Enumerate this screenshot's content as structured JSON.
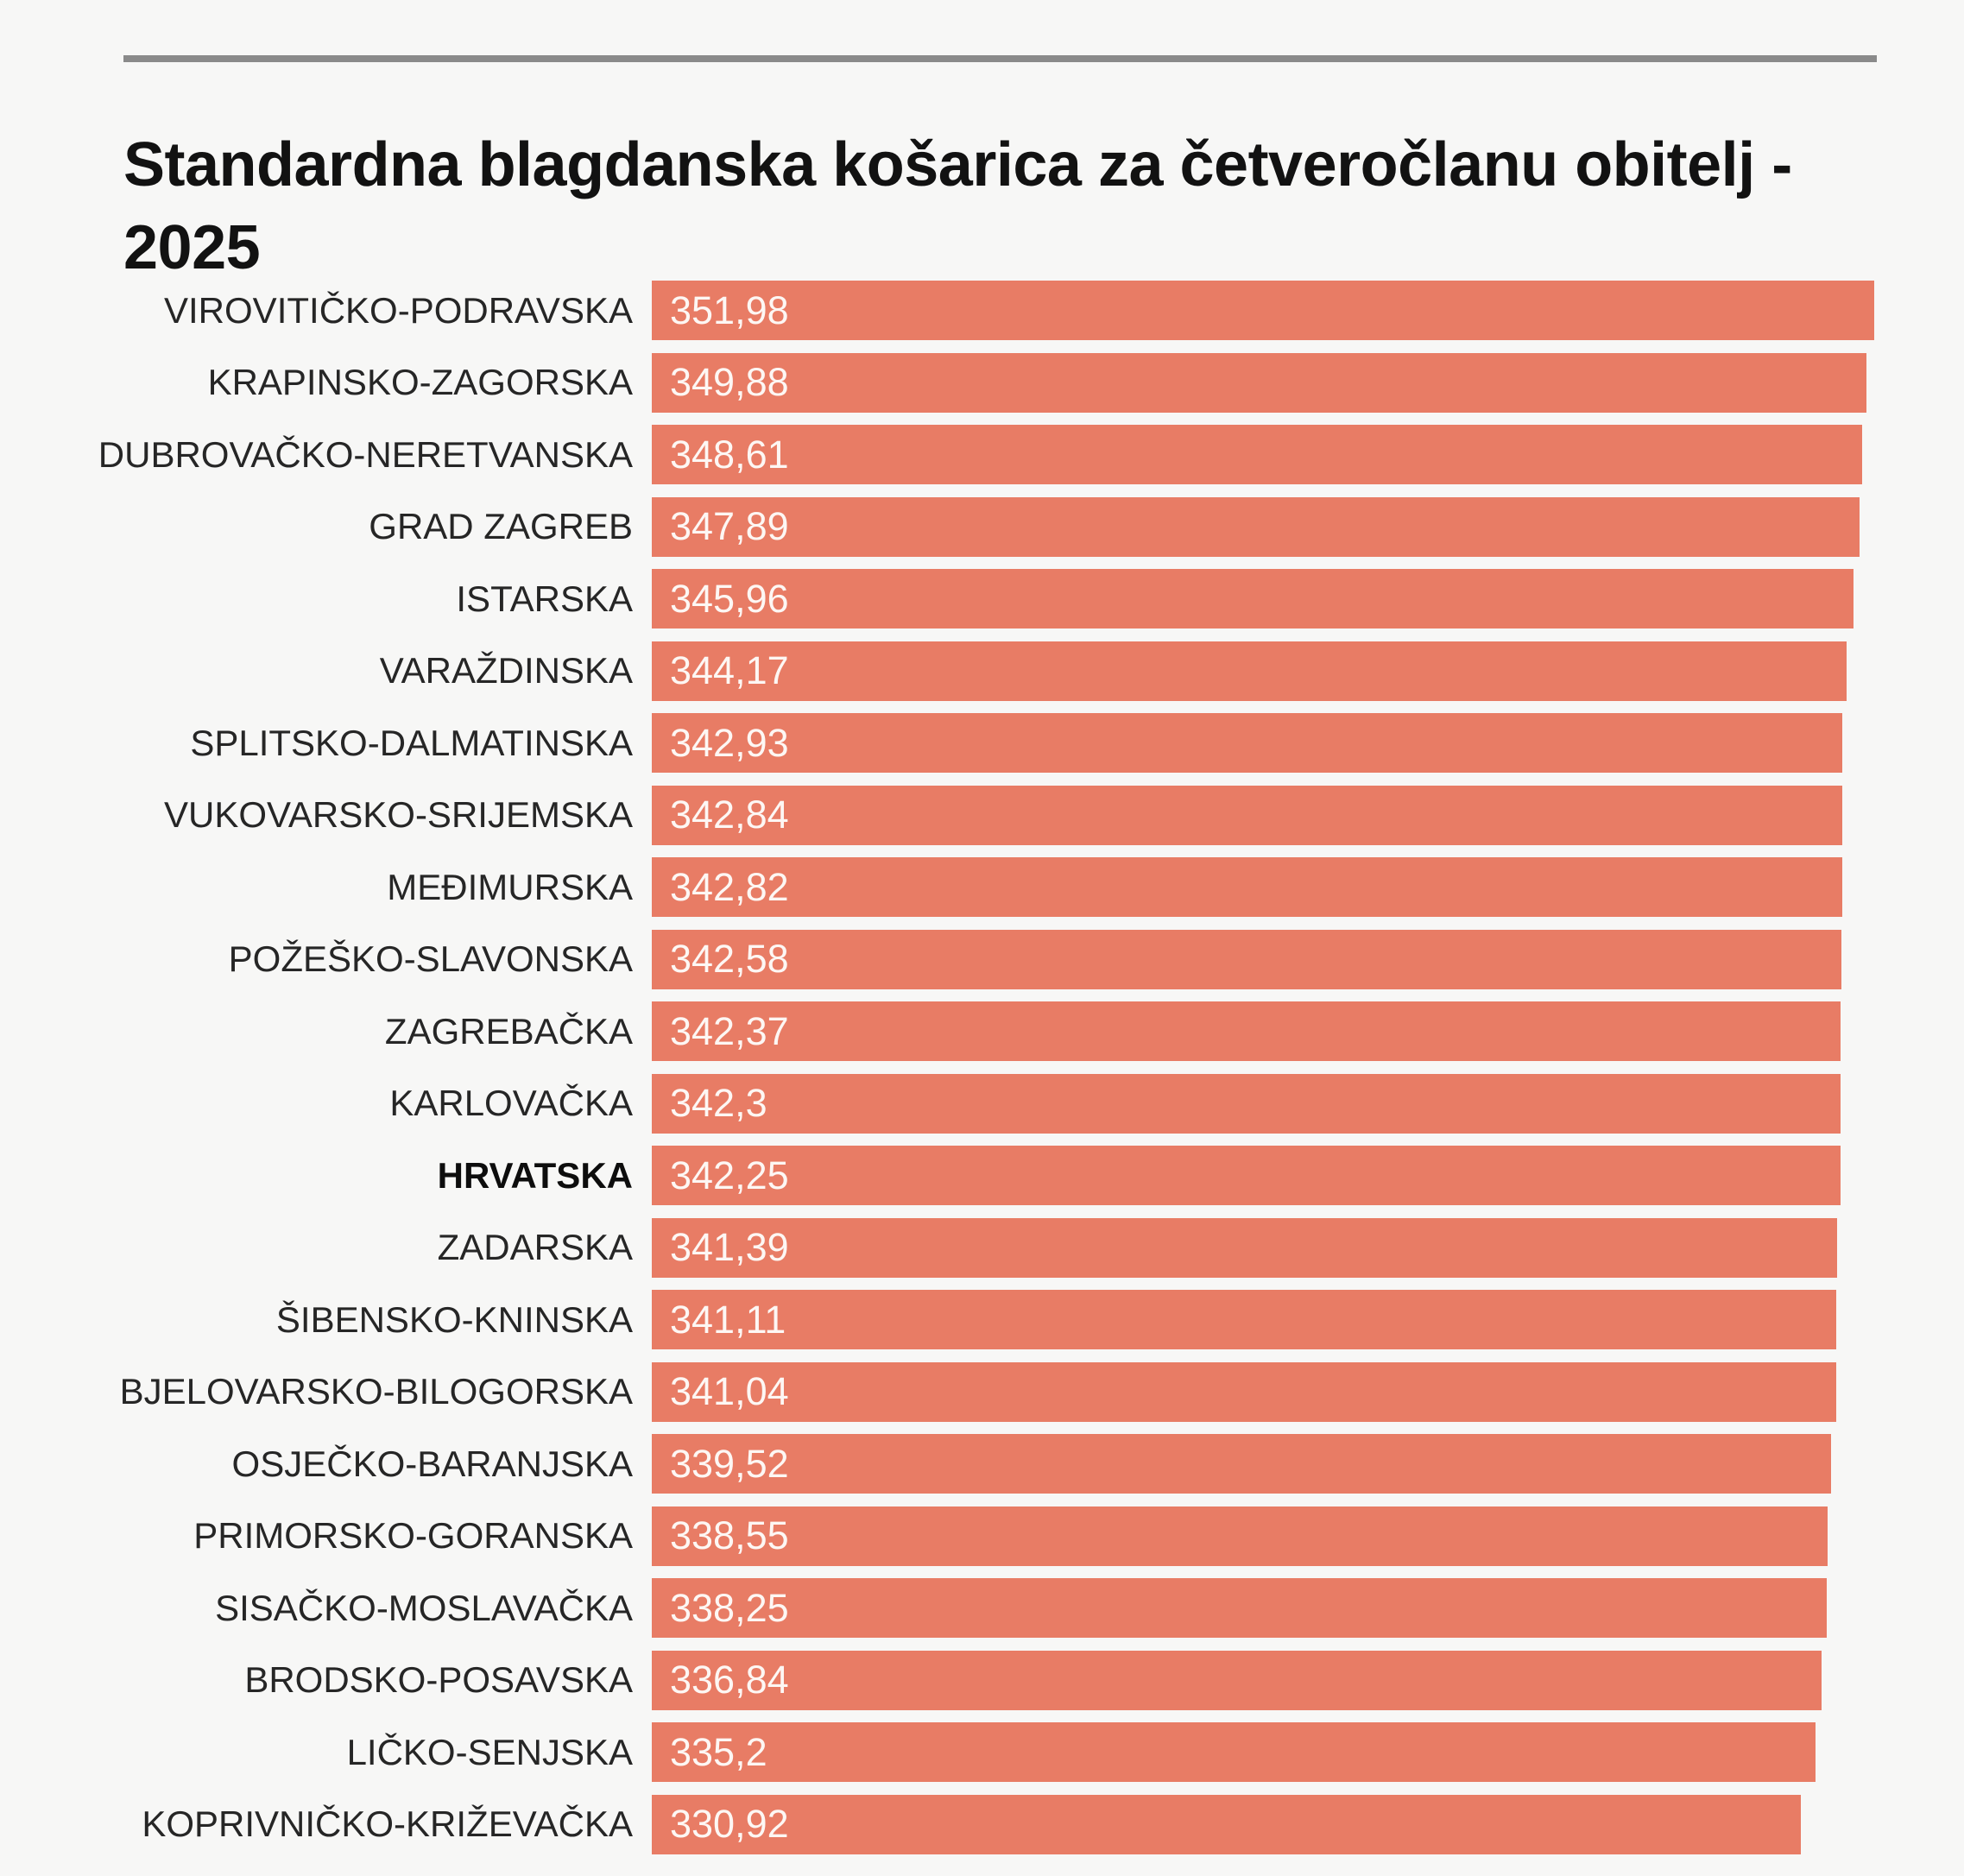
{
  "page": {
    "background_color": "#f7f7f6",
    "rule_color": "#8a8a8a"
  },
  "header": {
    "title_line1": "Standardna blagdanska košarica za četveročlanu obitelj -",
    "title_line2": "2025"
  },
  "chart_data": {
    "type": "bar",
    "orientation": "horizontal",
    "title": "Standardna blagdanska košarica za četveročlanu obitelj - 2025",
    "xlabel": "",
    "ylabel": "",
    "xlim": [
      0,
      377.9
    ],
    "grid": false,
    "legend": false,
    "value_format": "decimal-comma",
    "bar_color": "#e87c65",
    "category_label_color": "#262626",
    "value_label_color": "#fdf7f4",
    "rows": [
      {
        "label": "VIROVITIČKO-PODRAVSKA",
        "value": 351.98,
        "display": "351,98",
        "bold": false
      },
      {
        "label": "KRAPINSKO-ZAGORSKA",
        "value": 349.88,
        "display": "349,88",
        "bold": false
      },
      {
        "label": "DUBROVAČKO-NERETVANSKA",
        "value": 348.61,
        "display": "348,61",
        "bold": false
      },
      {
        "label": "GRAD ZAGREB",
        "value": 347.89,
        "display": "347,89",
        "bold": false
      },
      {
        "label": "ISTARSKA",
        "value": 345.96,
        "display": "345,96",
        "bold": false
      },
      {
        "label": "VARAŽDINSKA",
        "value": 344.17,
        "display": "344,17",
        "bold": false
      },
      {
        "label": "SPLITSKO-DALMATINSKA",
        "value": 342.93,
        "display": "342,93",
        "bold": false
      },
      {
        "label": "VUKOVARSKO-SRIJEMSKA",
        "value": 342.84,
        "display": "342,84",
        "bold": false
      },
      {
        "label": "MEĐIMURSKA",
        "value": 342.82,
        "display": "342,82",
        "bold": false
      },
      {
        "label": "POŽEŠKO-SLAVONSKA",
        "value": 342.58,
        "display": "342,58",
        "bold": false
      },
      {
        "label": "ZAGREBAČKA",
        "value": 342.37,
        "display": "342,37",
        "bold": false
      },
      {
        "label": "KARLOVAČKA",
        "value": 342.3,
        "display": "342,3",
        "bold": false
      },
      {
        "label": "HRVATSKA",
        "value": 342.25,
        "display": "342,25",
        "bold": true
      },
      {
        "label": "ZADARSKA",
        "value": 341.39,
        "display": "341,39",
        "bold": false
      },
      {
        "label": "ŠIBENSKO-KNINSKA",
        "value": 341.11,
        "display": "341,11",
        "bold": false
      },
      {
        "label": "BJELOVARSKO-BILOGORSKA",
        "value": 341.04,
        "display": "341,04",
        "bold": false
      },
      {
        "label": "OSJEČKO-BARANJSKA",
        "value": 339.52,
        "display": "339,52",
        "bold": false
      },
      {
        "label": "PRIMORSKO-GORANSKA",
        "value": 338.55,
        "display": "338,55",
        "bold": false
      },
      {
        "label": "SISAČKO-MOSLAVAČKA",
        "value": 338.25,
        "display": "338,25",
        "bold": false
      },
      {
        "label": "BRODSKO-POSAVSKA",
        "value": 336.84,
        "display": "336,84",
        "bold": false
      },
      {
        "label": "LIČKO-SENJSKA",
        "value": 335.2,
        "display": "335,2",
        "bold": false
      },
      {
        "label": "KOPRIVNIČKO-KRIŽEVAČKA",
        "value": 330.92,
        "display": "330,92",
        "bold": false
      }
    ]
  }
}
